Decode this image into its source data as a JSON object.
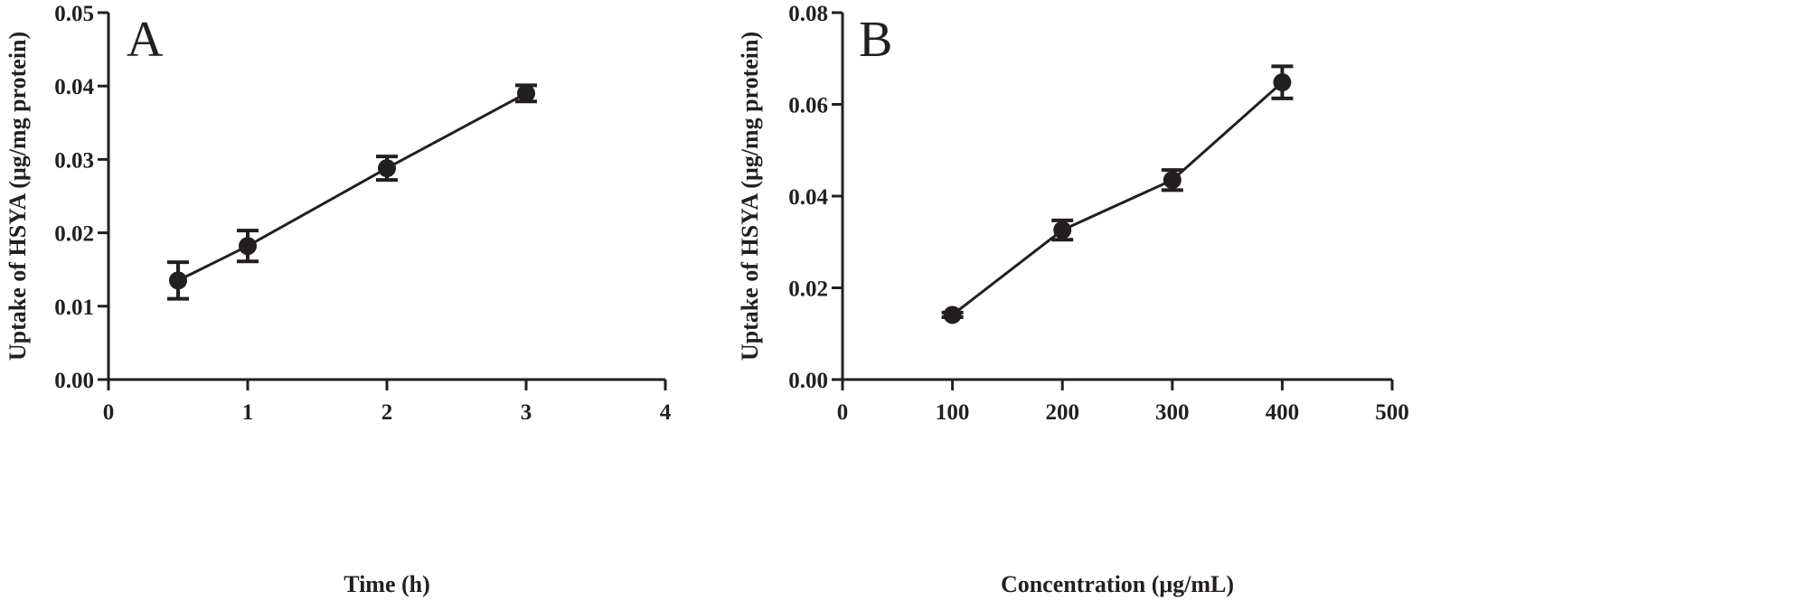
{
  "chart_data": [
    {
      "type": "line",
      "panel_label": "A",
      "xlabel": "Time (h)",
      "ylabel": "Uptake of HSYA (μg/mg protein)",
      "xlim": [
        0,
        4
      ],
      "ylim": [
        0,
        0.05
      ],
      "x_ticks": [
        "0",
        "1",
        "2",
        "3",
        "4"
      ],
      "y_ticks": [
        "0.00",
        "0.01",
        "0.02",
        "0.03",
        "0.04",
        "0.05"
      ],
      "grid": false,
      "series": [
        {
          "x": [
            0.5,
            1,
            2,
            3
          ],
          "y": [
            0.0135,
            0.0182,
            0.0288,
            0.039
          ],
          "error": [
            0.0025,
            0.0021,
            0.0016,
            0.0011
          ],
          "marker": "circle",
          "color": "#231f20"
        }
      ]
    },
    {
      "type": "line",
      "panel_label": "B",
      "xlabel": "Concentration (μg/mL)",
      "ylabel": "Uptake of HSYA (μg/mg protein)",
      "xlim": [
        0,
        500
      ],
      "ylim": [
        0,
        0.08
      ],
      "x_ticks": [
        "0",
        "100",
        "200",
        "300",
        "400",
        "500"
      ],
      "y_ticks": [
        "0.00",
        "0.02",
        "0.04",
        "0.06",
        "0.08"
      ],
      "grid": false,
      "series": [
        {
          "x": [
            100,
            200,
            300,
            400
          ],
          "y": [
            0.0141,
            0.0326,
            0.0435,
            0.0648
          ],
          "error": [
            0.0005,
            0.0021,
            0.0022,
            0.0035
          ],
          "marker": "circle",
          "color": "#231f20"
        }
      ]
    }
  ]
}
